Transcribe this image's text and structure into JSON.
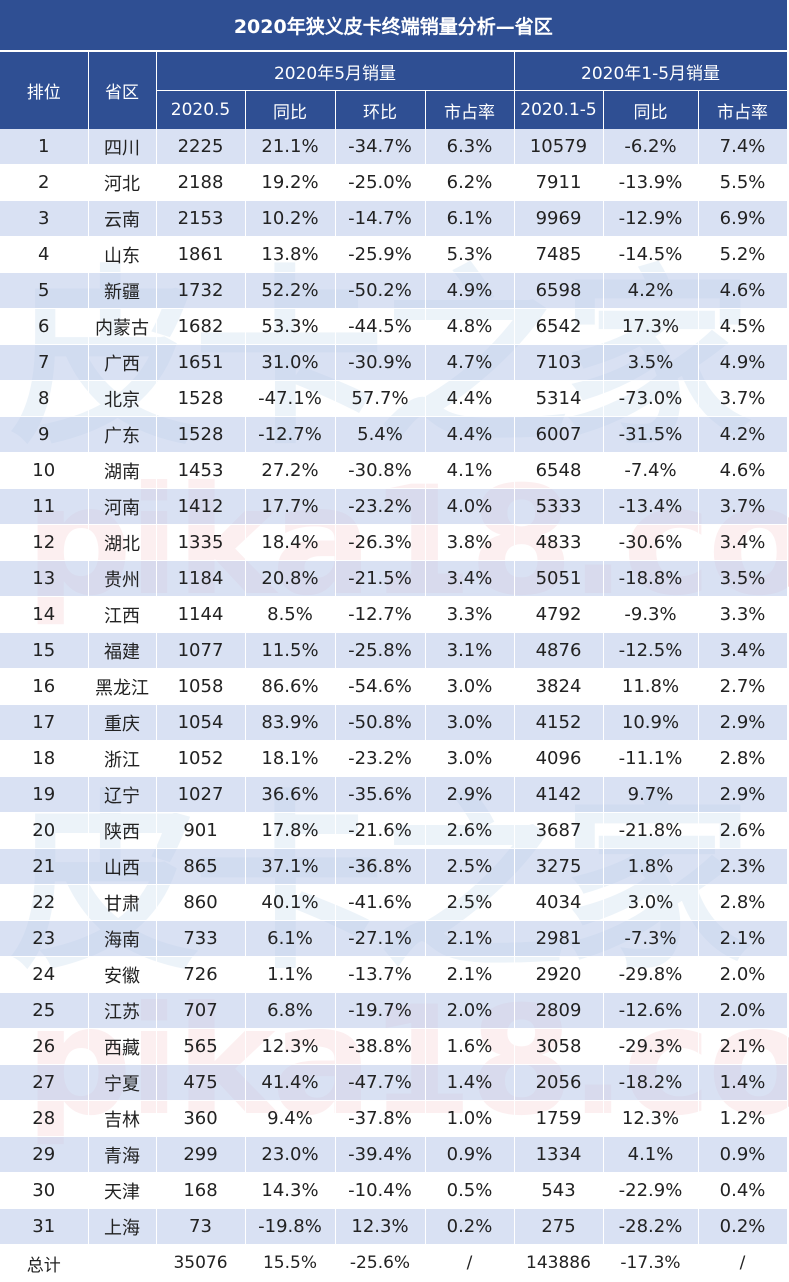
{
  "title": "2020年狭义皮卡终端销量分析—省区",
  "watermark": {
    "cn": "皮卡之家",
    "url": "pika18.com"
  },
  "colors": {
    "header_bg": "#2f4f93",
    "row_alt": "#d0daf0",
    "positive": "#c0161b",
    "negative": "#4b8c27"
  },
  "headers": {
    "rank": "排位",
    "province": "省区",
    "group_may": "2020年5月销量",
    "group_ytd": "2020年1-5月销量",
    "may": "2020.5",
    "yoy": "同比",
    "mom": "环比",
    "share": "市占率",
    "ytd": "2020.1-5",
    "yoy2": "同比",
    "share2": "市占率"
  },
  "rows": [
    {
      "rank": "1",
      "province": "四川",
      "may": "2225",
      "yoy": "21.1%",
      "mom": "-34.7%",
      "share": "6.3%",
      "ytd": "10579",
      "ytd_yoy": "-6.2%",
      "ytd_share": "7.4%"
    },
    {
      "rank": "2",
      "province": "河北",
      "may": "2188",
      "yoy": "19.2%",
      "mom": "-25.0%",
      "share": "6.2%",
      "ytd": "7911",
      "ytd_yoy": "-13.9%",
      "ytd_share": "5.5%"
    },
    {
      "rank": "3",
      "province": "云南",
      "may": "2153",
      "yoy": "10.2%",
      "mom": "-14.7%",
      "share": "6.1%",
      "ytd": "9969",
      "ytd_yoy": "-12.9%",
      "ytd_share": "6.9%"
    },
    {
      "rank": "4",
      "province": "山东",
      "may": "1861",
      "yoy": "13.8%",
      "mom": "-25.9%",
      "share": "5.3%",
      "ytd": "7485",
      "ytd_yoy": "-14.5%",
      "ytd_share": "5.2%"
    },
    {
      "rank": "5",
      "province": "新疆",
      "may": "1732",
      "yoy": "52.2%",
      "mom": "-50.2%",
      "share": "4.9%",
      "ytd": "6598",
      "ytd_yoy": "4.2%",
      "ytd_share": "4.6%"
    },
    {
      "rank": "6",
      "province": "内蒙古",
      "may": "1682",
      "yoy": "53.3%",
      "mom": "-44.5%",
      "share": "4.8%",
      "ytd": "6542",
      "ytd_yoy": "17.3%",
      "ytd_share": "4.5%"
    },
    {
      "rank": "7",
      "province": "广西",
      "may": "1651",
      "yoy": "31.0%",
      "mom": "-30.9%",
      "share": "4.7%",
      "ytd": "7103",
      "ytd_yoy": "3.5%",
      "ytd_share": "4.9%"
    },
    {
      "rank": "8",
      "province": "北京",
      "may": "1528",
      "yoy": "-47.1%",
      "mom": "57.7%",
      "share": "4.4%",
      "ytd": "5314",
      "ytd_yoy": "-73.0%",
      "ytd_share": "3.7%"
    },
    {
      "rank": "9",
      "province": "广东",
      "may": "1528",
      "yoy": "-12.7%",
      "mom": "5.4%",
      "share": "4.4%",
      "ytd": "6007",
      "ytd_yoy": "-31.5%",
      "ytd_share": "4.2%"
    },
    {
      "rank": "10",
      "province": "湖南",
      "may": "1453",
      "yoy": "27.2%",
      "mom": "-30.8%",
      "share": "4.1%",
      "ytd": "6548",
      "ytd_yoy": "-7.4%",
      "ytd_share": "4.6%"
    },
    {
      "rank": "11",
      "province": "河南",
      "may": "1412",
      "yoy": "17.7%",
      "mom": "-23.2%",
      "share": "4.0%",
      "ytd": "5333",
      "ytd_yoy": "-13.4%",
      "ytd_share": "3.7%"
    },
    {
      "rank": "12",
      "province": "湖北",
      "may": "1335",
      "yoy": "18.4%",
      "mom": "-26.3%",
      "share": "3.8%",
      "ytd": "4833",
      "ytd_yoy": "-30.6%",
      "ytd_share": "3.4%"
    },
    {
      "rank": "13",
      "province": "贵州",
      "may": "1184",
      "yoy": "20.8%",
      "mom": "-21.5%",
      "share": "3.4%",
      "ytd": "5051",
      "ytd_yoy": "-18.8%",
      "ytd_share": "3.5%"
    },
    {
      "rank": "14",
      "province": "江西",
      "may": "1144",
      "yoy": "8.5%",
      "mom": "-12.7%",
      "share": "3.3%",
      "ytd": "4792",
      "ytd_yoy": "-9.3%",
      "ytd_share": "3.3%"
    },
    {
      "rank": "15",
      "province": "福建",
      "may": "1077",
      "yoy": "11.5%",
      "mom": "-25.8%",
      "share": "3.1%",
      "ytd": "4876",
      "ytd_yoy": "-12.5%",
      "ytd_share": "3.4%"
    },
    {
      "rank": "16",
      "province": "黑龙江",
      "may": "1058",
      "yoy": "86.6%",
      "mom": "-54.6%",
      "share": "3.0%",
      "ytd": "3824",
      "ytd_yoy": "11.8%",
      "ytd_share": "2.7%"
    },
    {
      "rank": "17",
      "province": "重庆",
      "may": "1054",
      "yoy": "83.9%",
      "mom": "-50.8%",
      "share": "3.0%",
      "ytd": "4152",
      "ytd_yoy": "10.9%",
      "ytd_share": "2.9%"
    },
    {
      "rank": "18",
      "province": "浙江",
      "may": "1052",
      "yoy": "18.1%",
      "mom": "-23.2%",
      "share": "3.0%",
      "ytd": "4096",
      "ytd_yoy": "-11.1%",
      "ytd_share": "2.8%"
    },
    {
      "rank": "19",
      "province": "辽宁",
      "may": "1027",
      "yoy": "36.6%",
      "mom": "-35.6%",
      "share": "2.9%",
      "ytd": "4142",
      "ytd_yoy": "9.7%",
      "ytd_share": "2.9%"
    },
    {
      "rank": "20",
      "province": "陕西",
      "may": "901",
      "yoy": "17.8%",
      "mom": "-21.6%",
      "share": "2.6%",
      "ytd": "3687",
      "ytd_yoy": "-21.8%",
      "ytd_share": "2.6%"
    },
    {
      "rank": "21",
      "province": "山西",
      "may": "865",
      "yoy": "37.1%",
      "mom": "-36.8%",
      "share": "2.5%",
      "ytd": "3275",
      "ytd_yoy": "1.8%",
      "ytd_share": "2.3%"
    },
    {
      "rank": "22",
      "province": "甘肃",
      "may": "860",
      "yoy": "40.1%",
      "mom": "-41.6%",
      "share": "2.5%",
      "ytd": "4034",
      "ytd_yoy": "3.0%",
      "ytd_share": "2.8%"
    },
    {
      "rank": "23",
      "province": "海南",
      "may": "733",
      "yoy": "6.1%",
      "mom": "-27.1%",
      "share": "2.1%",
      "ytd": "2981",
      "ytd_yoy": "-7.3%",
      "ytd_share": "2.1%"
    },
    {
      "rank": "24",
      "province": "安徽",
      "may": "726",
      "yoy": "1.1%",
      "mom": "-13.7%",
      "share": "2.1%",
      "ytd": "2920",
      "ytd_yoy": "-29.8%",
      "ytd_share": "2.0%"
    },
    {
      "rank": "25",
      "province": "江苏",
      "may": "707",
      "yoy": "6.8%",
      "mom": "-19.7%",
      "share": "2.0%",
      "ytd": "2809",
      "ytd_yoy": "-12.6%",
      "ytd_share": "2.0%"
    },
    {
      "rank": "26",
      "province": "西藏",
      "may": "565",
      "yoy": "12.3%",
      "mom": "-38.8%",
      "share": "1.6%",
      "ytd": "3058",
      "ytd_yoy": "-29.3%",
      "ytd_share": "2.1%"
    },
    {
      "rank": "27",
      "province": "宁夏",
      "may": "475",
      "yoy": "41.4%",
      "mom": "-47.7%",
      "share": "1.4%",
      "ytd": "2056",
      "ytd_yoy": "-18.2%",
      "ytd_share": "1.4%"
    },
    {
      "rank": "28",
      "province": "吉林",
      "may": "360",
      "yoy": "9.4%",
      "mom": "-37.8%",
      "share": "1.0%",
      "ytd": "1759",
      "ytd_yoy": "12.3%",
      "ytd_share": "1.2%"
    },
    {
      "rank": "29",
      "province": "青海",
      "may": "299",
      "yoy": "23.0%",
      "mom": "-39.4%",
      "share": "0.9%",
      "ytd": "1334",
      "ytd_yoy": "4.1%",
      "ytd_share": "0.9%"
    },
    {
      "rank": "30",
      "province": "天津",
      "may": "168",
      "yoy": "14.3%",
      "mom": "-10.4%",
      "share": "0.5%",
      "ytd": "543",
      "ytd_yoy": "-22.9%",
      "ytd_share": "0.4%"
    },
    {
      "rank": "31",
      "province": "上海",
      "may": "73",
      "yoy": "-19.8%",
      "mom": "12.3%",
      "share": "0.2%",
      "ytd": "275",
      "ytd_yoy": "-28.2%",
      "ytd_share": "0.2%"
    }
  ],
  "total": {
    "label": "总计",
    "may": "35076",
    "yoy": "15.5%",
    "mom": "-25.6%",
    "share": "/",
    "ytd": "143886",
    "ytd_yoy": "-17.3%",
    "ytd_share": "/"
  }
}
